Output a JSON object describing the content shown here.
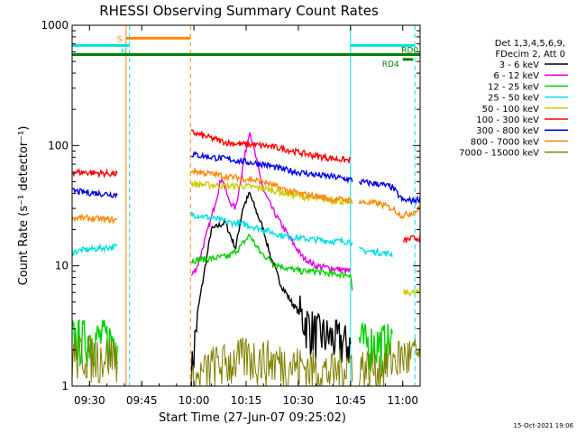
{
  "chart_data": {
    "type": "line",
    "title": "RHESSI Observing Summary Count Rates",
    "xlabel": "Start Time (27-Jun-07 09:25:02)",
    "ylabel": "Count Rate (s⁻¹ detector⁻¹)",
    "yscale": "log",
    "ylim": [
      1,
      1000
    ],
    "xlim_minutes": [
      0,
      100
    ],
    "xticks": [
      {
        "t": 5,
        "label": "09:30"
      },
      {
        "t": 20,
        "label": "09:45"
      },
      {
        "t": 35,
        "label": "10:00"
      },
      {
        "t": 50,
        "label": "10:15"
      },
      {
        "t": 65,
        "label": "10:30"
      },
      {
        "t": 80,
        "label": "10:45"
      },
      {
        "t": 95,
        "label": "11:00"
      }
    ],
    "yticks": [
      {
        "v": 1,
        "label": "1"
      },
      {
        "v": 10,
        "label": "10"
      },
      {
        "v": 100,
        "label": "100"
      },
      {
        "v": 1000,
        "label": "1000"
      }
    ],
    "legend_header": [
      "Det 1,3,4,5,6,9,",
      "FDecim 2, Att 0"
    ],
    "gaps": [
      [
        15.5,
        34
      ],
      [
        80.5,
        82.5
      ]
    ],
    "series": [
      {
        "name": "3 - 6 keV",
        "color": "#000000",
        "x": [
          0,
          15,
          34,
          36,
          40,
          44,
          47,
          49,
          51,
          53,
          55,
          57,
          60,
          63,
          66,
          70,
          75,
          80,
          82,
          90,
          96,
          100
        ],
        "y": [
          null,
          null,
          1,
          4,
          20,
          23,
          14,
          30,
          40,
          28,
          20,
          12,
          7,
          5,
          3.8,
          2.8,
          2.5,
          2.2,
          null,
          null,
          null,
          null
        ]
      },
      {
        "name": "6 - 12 keV",
        "color": "#e600e6",
        "x": [
          0,
          15,
          34,
          36,
          40,
          43,
          45,
          47,
          49,
          51,
          53,
          55,
          58,
          62,
          66,
          70,
          75,
          80,
          82,
          90,
          96,
          100
        ],
        "y": [
          null,
          null,
          8,
          10,
          25,
          55,
          35,
          30,
          65,
          135,
          75,
          42,
          28,
          18,
          12,
          10,
          9.5,
          9,
          null,
          null,
          null,
          null
        ]
      },
      {
        "name": "12 - 25 keV",
        "color": "#00d200",
        "x": [
          0,
          3,
          8,
          13,
          15,
          34,
          40,
          45,
          48,
          51,
          54,
          58,
          62,
          66,
          70,
          75,
          80,
          82,
          84,
          88,
          92,
          95,
          100
        ],
        "y": [
          2.5,
          2.5,
          2.5,
          2.5,
          null,
          11,
          11.5,
          12,
          14,
          18,
          13,
          10.5,
          9.5,
          9,
          9,
          8.5,
          8.5,
          2.5,
          2.3,
          2.3,
          2.3,
          null,
          null
        ]
      },
      {
        "name": "25 - 50 keV",
        "color": "#00e0e0",
        "x": [
          0,
          3,
          8,
          13,
          15,
          34,
          40,
          45,
          50,
          55,
          60,
          65,
          70,
          75,
          80,
          82,
          88,
          92,
          95,
          100
        ],
        "y": [
          13,
          13.5,
          14,
          14.5,
          null,
          27,
          25,
          23,
          22,
          20,
          18,
          17,
          16.5,
          16,
          16,
          13.5,
          13,
          12.5,
          null,
          null
        ]
      },
      {
        "name": "50 - 100 keV",
        "color": "#cccc00",
        "x": [
          0,
          15,
          34,
          40,
          45,
          50,
          55,
          60,
          65,
          70,
          75,
          80,
          82,
          88,
          92,
          95,
          98,
          100
        ],
        "y": [
          null,
          null,
          48,
          47,
          46,
          46,
          44,
          41,
          38,
          36,
          35,
          34,
          null,
          null,
          null,
          6,
          6,
          6
        ]
      },
      {
        "name": "100 - 300 keV",
        "color": "#ff0000",
        "x": [
          0,
          3,
          8,
          13,
          15,
          34,
          40,
          45,
          50,
          55,
          60,
          65,
          70,
          75,
          80,
          82,
          88,
          92,
          95,
          98,
          100
        ],
        "y": [
          60,
          60,
          59,
          58,
          null,
          130,
          115,
          105,
          102,
          100,
          95,
          88,
          82,
          78,
          75,
          null,
          null,
          null,
          16,
          17,
          17
        ]
      },
      {
        "name": "300 - 800 keV",
        "color": "#0000e6",
        "x": [
          0,
          3,
          8,
          13,
          15,
          34,
          40,
          45,
          50,
          55,
          60,
          65,
          70,
          75,
          80,
          82,
          88,
          92,
          95,
          98,
          100
        ],
        "y": [
          42,
          41,
          40,
          39,
          null,
          85,
          80,
          77,
          73,
          70,
          64,
          60,
          57,
          55,
          52,
          50,
          48,
          45,
          35,
          35,
          36
        ]
      },
      {
        "name": "800 - 7000 keV",
        "color": "#ff8800",
        "x": [
          0,
          3,
          8,
          13,
          15,
          34,
          40,
          45,
          50,
          55,
          60,
          65,
          70,
          75,
          80,
          82,
          88,
          92,
          95,
          98,
          100
        ],
        "y": [
          25,
          25,
          24.5,
          24,
          null,
          62,
          58,
          55,
          53,
          50,
          44,
          40,
          38,
          36,
          35,
          34,
          33,
          30,
          26,
          28,
          30
        ]
      },
      {
        "name": "7000 - 15000 keV",
        "color": "#808000",
        "x": [
          0,
          3,
          8,
          13,
          15,
          34,
          40,
          45,
          50,
          55,
          60,
          65,
          70,
          75,
          80,
          82,
          88,
          92,
          95,
          100
        ],
        "y": [
          1.8,
          1.9,
          1.8,
          1.9,
          null,
          1,
          1.5,
          1.6,
          1.8,
          1.7,
          1.6,
          1.5,
          1.4,
          1.3,
          1.6,
          1.5,
          1.4,
          1.7,
          1.8,
          1.8
        ]
      }
    ],
    "annotations": [
      {
        "label": "S",
        "color": "#ff8800",
        "t_start": 15.5,
        "t_end": 34,
        "level": 780,
        "line_at": [
          15.5,
          34
        ],
        "style": "solid-dashed"
      },
      {
        "label": "N",
        "color": "#00e0e0",
        "t_start": 0,
        "t_end": 16.5,
        "level": 680,
        "line_at": [
          16.5
        ],
        "style": "dashed"
      },
      {
        "label": "N",
        "color": "#00e0e0",
        "t_start": 80,
        "t_end": 98.5,
        "level": 680,
        "line_at": [
          80,
          98.5
        ],
        "style": "solid-dashed"
      },
      {
        "label": "RD0",
        "color": "#008000",
        "t_start": 0,
        "t_end": 100,
        "level": 570
      },
      {
        "label": "RD4",
        "color": "#008000",
        "t_start": 95,
        "t_end": 98,
        "level": 520
      }
    ]
  },
  "footer_timestamp": "15-Oct-2021 19:06"
}
